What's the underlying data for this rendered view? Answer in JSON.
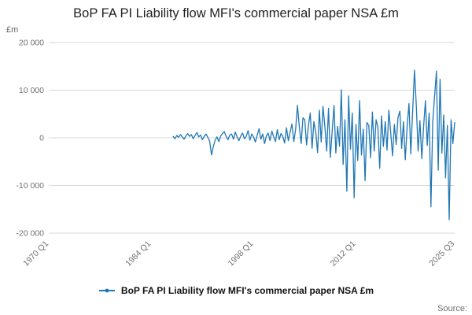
{
  "title": "BoP FA PI Liability flow MFI's commercial paper NSA £m",
  "source_label": "Source:",
  "accent_color": "#1f77b4",
  "grid_color": "#d9d9d9",
  "axis_text_color": "#707070",
  "legend": {
    "label": "BoP FA PI Liability flow MFI's commercial paper NSA £m"
  },
  "chart_data": {
    "type": "line",
    "title": "BoP FA PI Liability flow MFI's commercial paper NSA £m",
    "xlabel": "",
    "ylabel": "£m",
    "ylim": [
      -20000,
      20000
    ],
    "grid": true,
    "legend_position": "bottom",
    "yticks": [
      {
        "value": 20000,
        "label": "20 000"
      },
      {
        "value": 10000,
        "label": "10 000"
      },
      {
        "value": 0,
        "label": "0"
      },
      {
        "value": -10000,
        "label": "-10 000"
      },
      {
        "value": -20000,
        "label": "-20 000"
      }
    ],
    "xticks": [
      "1970 Q1",
      "1984 Q1",
      "1998 Q1",
      "2012 Q1",
      "2025 Q3"
    ],
    "series": [
      {
        "name": "BoP FA PI Liability flow MFI's commercial paper NSA £m",
        "start": "1987 Q1",
        "frequency": "quarterly",
        "values": [
          300,
          -200,
          500,
          100,
          700,
          200,
          -300,
          400,
          900,
          300,
          700,
          -200,
          500,
          1100,
          200,
          600,
          -400,
          300,
          800,
          100,
          -700,
          -3600,
          -1800,
          -500,
          200,
          -800,
          400,
          900,
          1300,
          300,
          -400,
          600,
          800,
          -300,
          1200,
          200,
          -600,
          400,
          1000,
          -200,
          300,
          1500,
          -500,
          800,
          200,
          -900,
          600,
          1900,
          -300,
          800,
          -1200,
          400,
          1000,
          -600,
          1400,
          200,
          -800,
          1700,
          -400,
          900,
          300,
          -1100,
          2100,
          -600,
          1200,
          2900,
          -800,
          1800,
          6800,
          2500,
          -1200,
          4200,
          3800,
          -1500,
          2600,
          5200,
          -2200,
          3400,
          1200,
          -3100,
          5800,
          -900,
          6600,
          2300,
          -2800,
          6200,
          -4100,
          1500,
          6800,
          -3200,
          2400,
          -1800,
          10100,
          -5600,
          3800,
          -11200,
          8800,
          -2400,
          5200,
          -12600,
          2800,
          -4800,
          7800,
          -3600,
          1800,
          -9000,
          3200,
          2600,
          -4200,
          5400,
          -2800,
          3800,
          2200,
          -6400,
          4600,
          -1800,
          3400,
          -2600,
          5800,
          1200,
          -3800,
          2800,
          -1400,
          4200,
          5600,
          -2200,
          3400,
          -4600,
          2600,
          7200,
          -3400,
          5400,
          14200,
          6800,
          -2800,
          3600,
          -4400,
          2400,
          7800,
          -1600,
          5200,
          -14500,
          3400,
          8600,
          14000,
          -6800,
          12300,
          -3200,
          4800,
          -8400,
          2600,
          -17200,
          3800,
          -1200,
          3200
        ]
      }
    ]
  }
}
